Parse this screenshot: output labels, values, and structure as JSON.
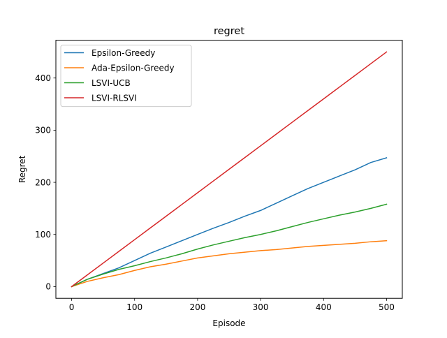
{
  "chart_data": {
    "type": "line",
    "title": "regret",
    "xlabel": "Episode",
    "ylabel": "Regret",
    "xlim": [
      -25,
      525
    ],
    "ylim": [
      -22.5,
      472.5
    ],
    "xticks": [
      0,
      100,
      200,
      300,
      400,
      500
    ],
    "yticks": [
      0,
      100,
      200,
      300,
      400
    ],
    "grid": false,
    "legend_position": "upper-left",
    "x": [
      0,
      25,
      50,
      75,
      100,
      125,
      150,
      175,
      200,
      225,
      250,
      275,
      300,
      325,
      350,
      375,
      400,
      425,
      450,
      475,
      500
    ],
    "series": [
      {
        "name": "Epsilon-Greedy",
        "color": "#1f77b4",
        "values": [
          0,
          14,
          25,
          36,
          50,
          64,
          76,
          88,
          100,
          112,
          123,
          135,
          146,
          160,
          174,
          188,
          200,
          212,
          224,
          238,
          247
        ]
      },
      {
        "name": "Ada-Epsilon-Greedy",
        "color": "#ff7f0e",
        "values": [
          0,
          10,
          17,
          23,
          31,
          38,
          43,
          49,
          55,
          59,
          63,
          66,
          69,
          71,
          74,
          77,
          79,
          81,
          83,
          86,
          88
        ]
      },
      {
        "name": "LSVI-UCB",
        "color": "#2ca02c",
        "values": [
          0,
          14,
          24,
          33,
          40,
          48,
          55,
          63,
          72,
          80,
          87,
          94,
          100,
          107,
          115,
          123,
          130,
          137,
          143,
          150,
          158
        ]
      },
      {
        "name": "LSVI-RLSVI",
        "color": "#d62728",
        "values": [
          0,
          22.5,
          45,
          67.5,
          90,
          112.5,
          135,
          157.5,
          180,
          202.5,
          225,
          247.5,
          270,
          292.5,
          315,
          337.5,
          360,
          382.5,
          405,
          427.5,
          450
        ]
      }
    ]
  }
}
